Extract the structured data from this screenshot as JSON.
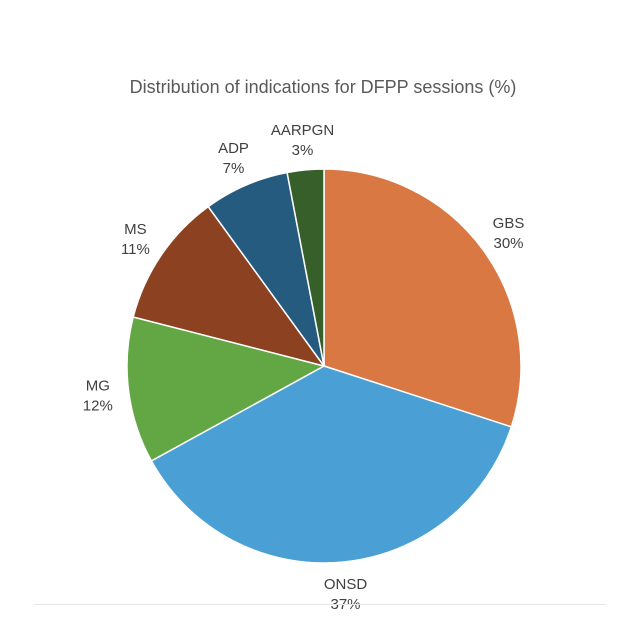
{
  "chart_data": {
    "type": "pie",
    "title": "Distribution of indications for DFPP sessions (%)",
    "slices": [
      {
        "label": "GBS",
        "value": 30,
        "value_label": "30%",
        "color": "#D97843"
      },
      {
        "label": "ONSD",
        "value": 37,
        "value_label": "37%",
        "color": "#4A9FD5"
      },
      {
        "label": "MG",
        "value": 12,
        "value_label": "12%",
        "color": "#62A744"
      },
      {
        "label": "MS",
        "value": 11,
        "value_label": "11%",
        "color": "#8C4220"
      },
      {
        "label": "ADP",
        "value": 7,
        "value_label": "7%",
        "color": "#265B80"
      },
      {
        "label": "AARPGN",
        "value": 3,
        "value_label": "3%",
        "color": "#365F2A"
      }
    ]
  }
}
